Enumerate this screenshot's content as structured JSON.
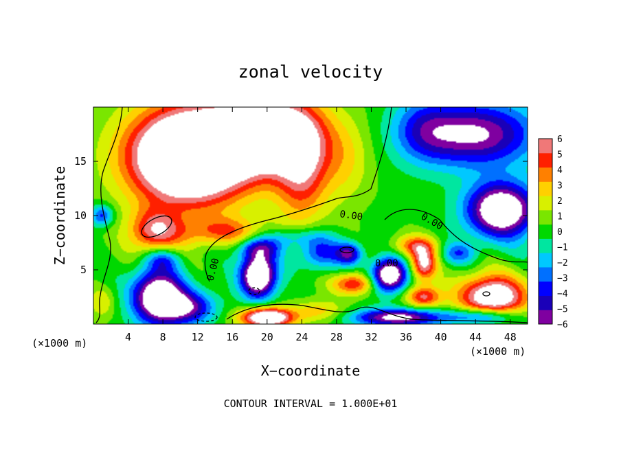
{
  "chart_data": {
    "type": "heatmap",
    "title": "zonal velocity",
    "xlabel": "X−coordinate",
    "ylabel": "Z−coordinate",
    "x_unit_left": "(×1000 m)",
    "x_unit_right": "(×1000 m)",
    "footer": "CONTOUR INTERVAL = 1.000E+01",
    "xlim": [
      0,
      50
    ],
    "ylim": [
      0,
      20
    ],
    "x_ticks": [
      4,
      8,
      12,
      16,
      20,
      24,
      28,
      32,
      36,
      40,
      44,
      48
    ],
    "x_tick_labels": [
      "4",
      "8",
      "12",
      "16",
      "20",
      "24",
      "28",
      "32",
      "36",
      "40",
      "44",
      "48"
    ],
    "y_ticks": [
      5,
      10,
      15
    ],
    "y_tick_labels": [
      "5",
      "10",
      "15"
    ],
    "colorbar": {
      "range": [
        -6,
        6
      ],
      "ticks": [
        6,
        5,
        4,
        3,
        2,
        1,
        0,
        -1,
        -2,
        -3,
        -4,
        -5,
        -6
      ],
      "tick_labels": [
        "6",
        "5",
        "4",
        "3",
        "2",
        "1",
        "0",
        "−1",
        "−2",
        "−3",
        "−4",
        "−5",
        "−6"
      ],
      "colors": [
        "#7f00a0",
        "#1a00b8",
        "#0000ff",
        "#0070ff",
        "#00c8ff",
        "#00e6a0",
        "#00d800",
        "#7ae600",
        "#d8f000",
        "#ffd000",
        "#ff8000",
        "#ff2000",
        "#f07878"
      ],
      "saturated_color": "#ffffff"
    },
    "contour_labels": [
      "0.00",
      "0.00",
      "0.00",
      "0.00"
    ],
    "field": {
      "background": 0.2,
      "features": [
        {
          "x": 11,
          "z": 15.5,
          "value": 12,
          "rx": 7,
          "rz": 4.5
        },
        {
          "x": 20,
          "z": 17.5,
          "value": 9,
          "rx": 6,
          "rz": 3.5
        },
        {
          "x": 24,
          "z": 14,
          "value": 4.5,
          "rx": 3,
          "rz": 5
        },
        {
          "x": 29,
          "z": 15,
          "value": 2,
          "rx": 3,
          "rz": 4
        },
        {
          "x": 7,
          "z": 8.5,
          "value": 5,
          "rx": 3,
          "rz": 2
        },
        {
          "x": 15,
          "z": 8.5,
          "value": 3.5,
          "rx": 5,
          "rz": 1.3
        },
        {
          "x": 44,
          "z": 17.5,
          "value": -6.5,
          "rx": 7,
          "rz": 3
        },
        {
          "x": 47,
          "z": 10.5,
          "value": -9,
          "rx": 4,
          "rz": 2.5
        },
        {
          "x": 38,
          "z": 18,
          "value": -2.5,
          "rx": 3.5,
          "rz": 3
        },
        {
          "x": 1,
          "z": 10,
          "value": -4,
          "rx": 1.3,
          "rz": 1
        },
        {
          "x": 7.5,
          "z": 2.5,
          "value": -9,
          "rx": 3,
          "rz": 2.5
        },
        {
          "x": 11,
          "z": 1.5,
          "value": -5,
          "rx": 3,
          "rz": 1.5
        },
        {
          "x": 19,
          "z": 4.5,
          "value": -10,
          "rx": 2,
          "rz": 2
        },
        {
          "x": 19,
          "z": 7,
          "value": -4,
          "rx": 2.5,
          "rz": 1
        },
        {
          "x": 30,
          "z": 3.7,
          "value": 5,
          "rx": 2.5,
          "rz": 1
        },
        {
          "x": 34,
          "z": 4.5,
          "value": -9,
          "rx": 2,
          "rz": 1.5
        },
        {
          "x": 38,
          "z": 5.5,
          "value": 6,
          "rx": 1.5,
          "rz": 1.5
        },
        {
          "x": 37,
          "z": 7.2,
          "value": 4,
          "rx": 2.5,
          "rz": 1
        },
        {
          "x": 26,
          "z": 6.5,
          "value": -4,
          "rx": 2.5,
          "rz": 1.5
        },
        {
          "x": 29.5,
          "z": 6.5,
          "value": -5,
          "rx": 1.5,
          "rz": 1
        },
        {
          "x": 42,
          "z": 6.5,
          "value": -3,
          "rx": 2,
          "rz": 1
        },
        {
          "x": 46,
          "z": 2.5,
          "value": 8,
          "rx": 4,
          "rz": 2
        },
        {
          "x": 45,
          "z": 0.7,
          "value": -5,
          "rx": 4,
          "rz": 0.8
        },
        {
          "x": 35,
          "z": 0.6,
          "value": -7,
          "rx": 5,
          "rz": 0.8
        },
        {
          "x": 20,
          "z": 0.6,
          "value": 9,
          "rx": 3,
          "rz": 0.9
        },
        {
          "x": 26,
          "z": 1.2,
          "value": 2.5,
          "rx": 3,
          "rz": 1
        },
        {
          "x": 38,
          "z": 2.5,
          "value": 5,
          "rx": 2,
          "rz": 1
        },
        {
          "x": 1,
          "z": 2,
          "value": 2,
          "rx": 1.5,
          "rz": 1.5
        },
        {
          "x": 8,
          "z": 6,
          "value": -3,
          "rx": 2,
          "rz": 1
        },
        {
          "x": 23,
          "z": 8,
          "value": -2.5,
          "rx": 4,
          "rz": 1
        }
      ]
    }
  }
}
